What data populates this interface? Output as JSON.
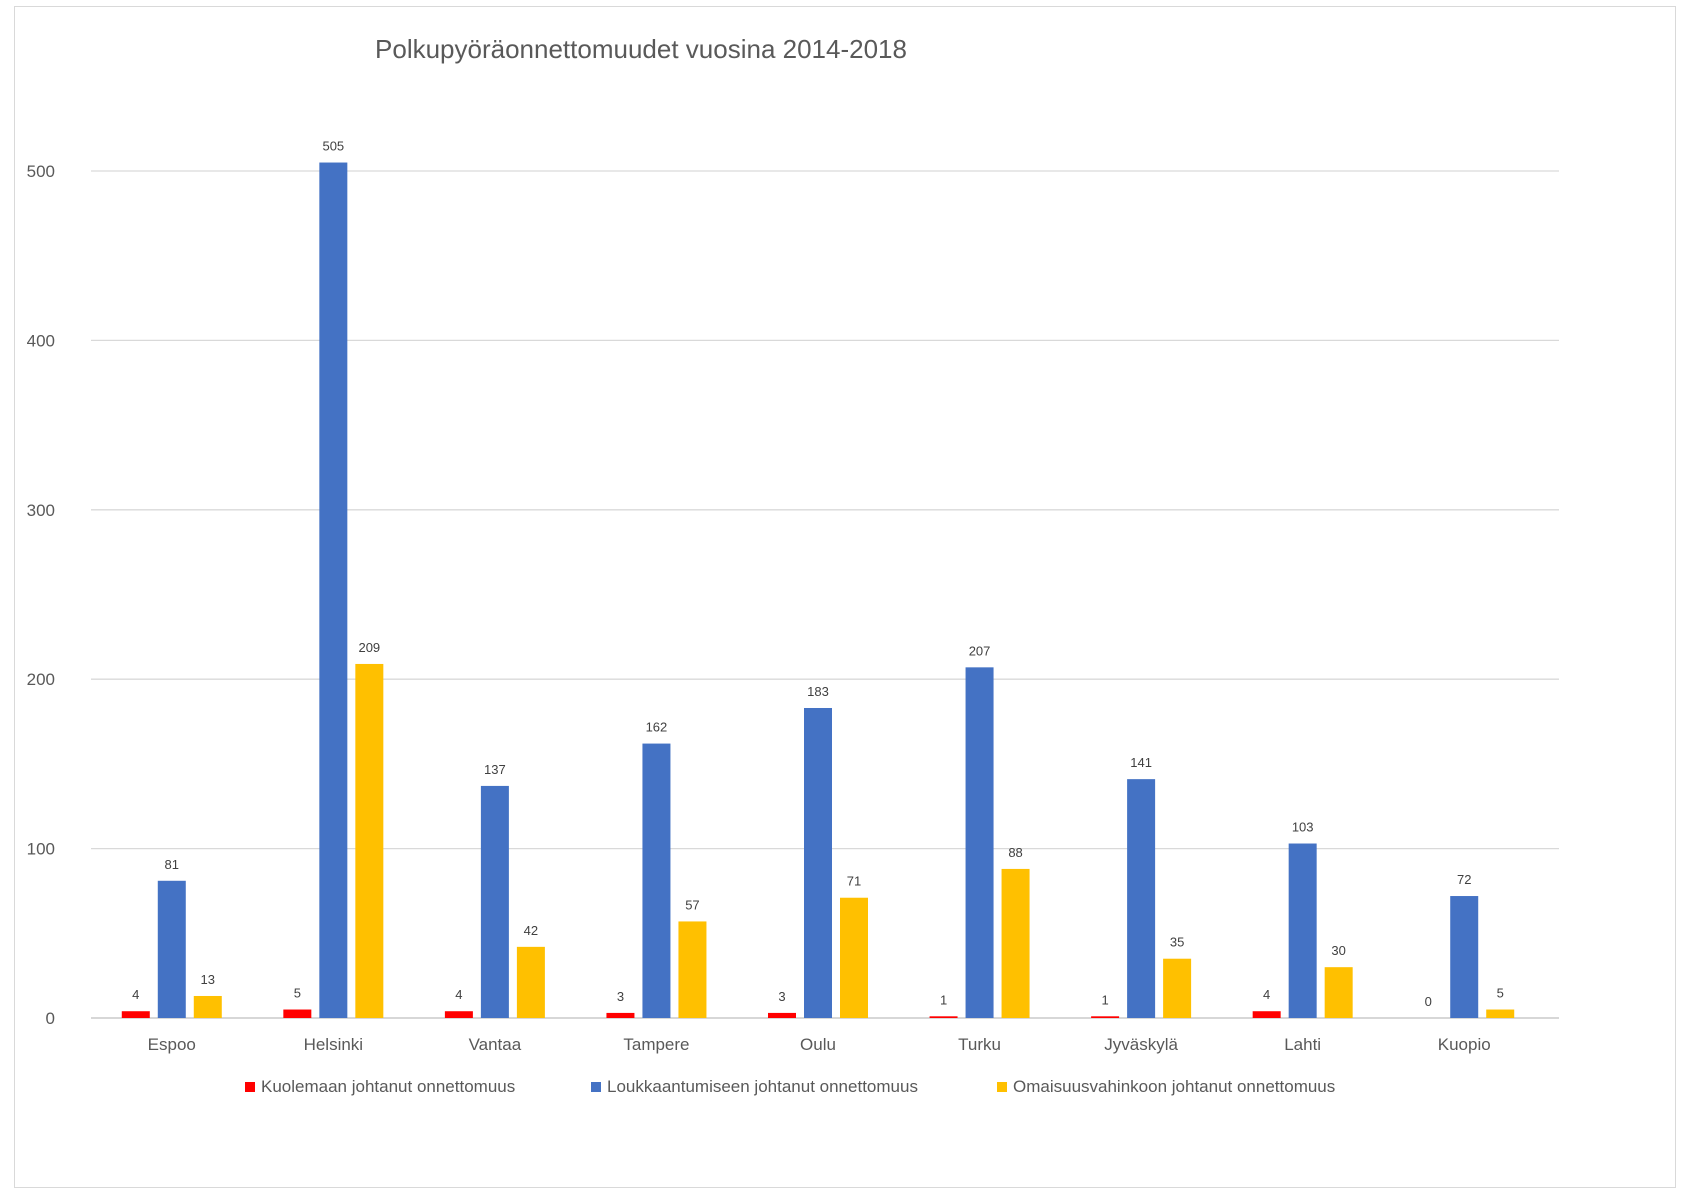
{
  "chart_data": {
    "type": "bar",
    "title": "Polkupyöräonnettomuudet vuosina 2014-2018",
    "xlabel": "",
    "ylabel": "",
    "ylim": [
      0,
      500
    ],
    "yticks": [
      0,
      100,
      200,
      300,
      400,
      500
    ],
    "grid": true,
    "legend_position": "bottom",
    "categories": [
      "Espoo",
      "Helsinki",
      "Vantaa",
      "Tampere",
      "Oulu",
      "Turku",
      "Jyväskylä",
      "Lahti",
      "Kuopio"
    ],
    "series": [
      {
        "name": "Kuolemaan johtanut onnettomuus",
        "color": "#ff0000",
        "values": [
          4,
          5,
          4,
          3,
          3,
          1,
          1,
          4,
          0
        ]
      },
      {
        "name": "Loukkaantumiseen johtanut onnettomuus",
        "color": "#4472c4",
        "values": [
          81,
          505,
          137,
          162,
          183,
          207,
          141,
          103,
          72
        ]
      },
      {
        "name": "Omaisuusvahinkoon johtanut onnettomuus",
        "color": "#ffc000",
        "values": [
          13,
          209,
          42,
          57,
          71,
          88,
          35,
          30,
          5
        ]
      }
    ]
  }
}
